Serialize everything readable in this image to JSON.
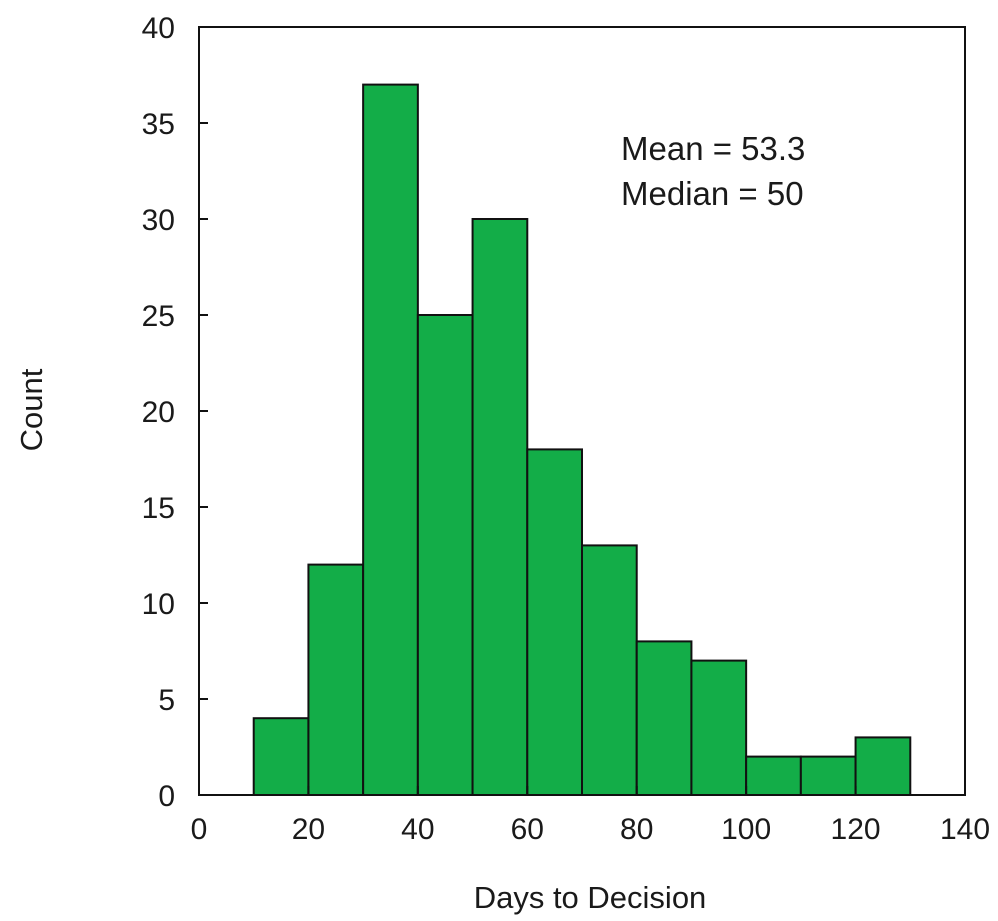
{
  "colors": {
    "bar_fill": "#13ad48",
    "bar_stroke": "#111111",
    "text": "#1a1a1a",
    "background": "#ffffff"
  },
  "chart_data": {
    "type": "bar",
    "title": "",
    "xlabel": "Days to Decision",
    "ylabel": "Count",
    "xlim": [
      0,
      140
    ],
    "ylim": [
      0,
      40
    ],
    "x_ticks": [
      0,
      20,
      40,
      60,
      80,
      100,
      120,
      140
    ],
    "y_ticks": [
      0,
      5,
      10,
      15,
      20,
      25,
      30,
      35,
      40
    ],
    "bins": [
      {
        "start": 10,
        "end": 20,
        "count": 4
      },
      {
        "start": 20,
        "end": 30,
        "count": 12
      },
      {
        "start": 30,
        "end": 40,
        "count": 37
      },
      {
        "start": 40,
        "end": 50,
        "count": 25
      },
      {
        "start": 50,
        "end": 60,
        "count": 30
      },
      {
        "start": 60,
        "end": 70,
        "count": 18
      },
      {
        "start": 70,
        "end": 80,
        "count": 13
      },
      {
        "start": 80,
        "end": 90,
        "count": 8
      },
      {
        "start": 90,
        "end": 100,
        "count": 7
      },
      {
        "start": 100,
        "end": 110,
        "count": 2
      },
      {
        "start": 110,
        "end": 120,
        "count": 2
      },
      {
        "start": 120,
        "end": 130,
        "count": 3
      }
    ],
    "annotations": [
      "Mean = 53.3",
      "Median = 50"
    ],
    "grid": false,
    "legend": "none"
  }
}
